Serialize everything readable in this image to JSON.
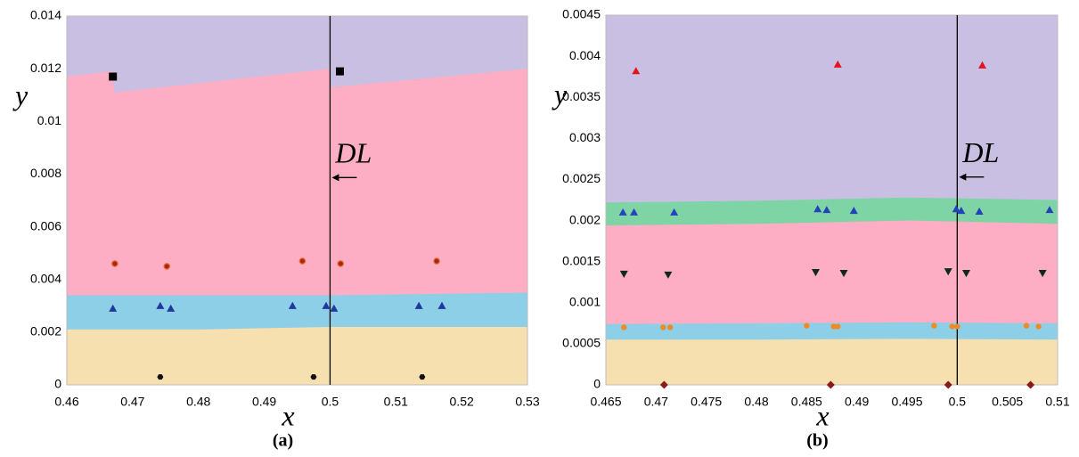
{
  "chart_data": [
    {
      "type": "scatter",
      "caption": "(a)",
      "xlabel": "x",
      "ylabel": "y",
      "xlim": [
        0.46,
        0.53
      ],
      "xticks": [
        0.46,
        0.47,
        0.48,
        0.49,
        0.5,
        0.51,
        0.52,
        0.53
      ],
      "ylim": [
        0,
        0.014
      ],
      "yticks": [
        0,
        0.002,
        0.004,
        0.006,
        0.008,
        0.01,
        0.012,
        0.014
      ],
      "plot_background": "#c8bfe3",
      "bands": [
        {
          "color": "#fdaec4",
          "x": [
            0.46,
            0.4668,
            0.4672,
            0.5,
            0.5002,
            0.53
          ],
          "y": [
            0.0117,
            0.0119,
            0.0111,
            0.012,
            0.0113,
            0.012
          ]
        },
        {
          "color": "#8ecfe8",
          "x": [
            0.46,
            0.48,
            0.5,
            0.53
          ],
          "y": [
            0.0034,
            0.0034,
            0.0034,
            0.0035
          ]
        },
        {
          "color": "#f6e0b0",
          "x": [
            0.46,
            0.48,
            0.5,
            0.53
          ],
          "y": [
            0.0021,
            0.0021,
            0.0022,
            0.0022
          ]
        }
      ],
      "vline": 0.5,
      "annotation": "DL",
      "series": [
        {
          "marker": "square",
          "color": "#000000",
          "x": [
            0.467,
            0.5015
          ],
          "y": [
            0.0117,
            0.0119
          ]
        },
        {
          "marker": "circle",
          "color": "#a8251a",
          "x": [
            0.4673,
            0.4752,
            0.4958,
            0.5016,
            0.5162
          ],
          "y": [
            0.0046,
            0.0045,
            0.0047,
            0.0046,
            0.0047
          ]
        },
        {
          "marker": "triangle",
          "color": "#1f3a9e",
          "x": [
            0.467,
            0.4742,
            0.4758,
            0.4943,
            0.4994,
            0.5006,
            0.5135,
            0.517
          ],
          "y": [
            0.0029,
            0.003,
            0.0029,
            0.003,
            0.003,
            0.0029,
            0.003,
            0.003
          ]
        },
        {
          "marker": "hexagon",
          "color": "#111111",
          "x": [
            0.4742,
            0.4975,
            0.514
          ],
          "y": [
            0.0003,
            0.0003,
            0.0003
          ]
        }
      ]
    },
    {
      "type": "scatter",
      "caption": "(b)",
      "xlabel": "x",
      "ylabel": "y",
      "xlim": [
        0.465,
        0.51
      ],
      "xticks": [
        0.465,
        0.47,
        0.475,
        0.48,
        0.485,
        0.49,
        0.495,
        0.5,
        0.505,
        0.51
      ],
      "ylim": [
        0,
        0.0045
      ],
      "yticks": [
        0,
        0.0005,
        0.001,
        0.0015,
        0.002,
        0.0025,
        0.003,
        0.0035,
        0.004,
        0.0045
      ],
      "plot_background": "#c8bfe3",
      "bands": [
        {
          "color": "#7fd4a6",
          "x": [
            0.465,
            0.48,
            0.495,
            0.51
          ],
          "y": [
            0.00222,
            0.00224,
            0.00228,
            0.00225
          ]
        },
        {
          "color": "#fdaec4",
          "x": [
            0.465,
            0.48,
            0.495,
            0.51
          ],
          "y": [
            0.00194,
            0.00196,
            0.002,
            0.00196
          ]
        },
        {
          "color": "#8ecfe8",
          "x": [
            0.465,
            0.48,
            0.495,
            0.51
          ],
          "y": [
            0.00074,
            0.00075,
            0.00076,
            0.00075
          ]
        },
        {
          "color": "#f6e0b0",
          "x": [
            0.465,
            0.48,
            0.495,
            0.51
          ],
          "y": [
            0.00055,
            0.00055,
            0.00056,
            0.00055
          ]
        }
      ],
      "vline": 0.5,
      "annotation": "DL",
      "series": [
        {
          "marker": "triangle",
          "color": "#e3141e",
          "x": [
            0.468,
            0.4881,
            0.5025
          ],
          "y": [
            0.00382,
            0.0039,
            0.00389
          ]
        },
        {
          "marker": "triangle",
          "color": "#2343b8",
          "x": [
            0.4667,
            0.4678,
            0.4718,
            0.4861,
            0.487,
            0.4897,
            0.4999,
            0.5004,
            0.5022,
            0.5092
          ],
          "y": [
            0.0021,
            0.0021,
            0.0021,
            0.00214,
            0.00213,
            0.00212,
            0.00214,
            0.00212,
            0.00211,
            0.00213
          ]
        },
        {
          "marker": "triangle-down",
          "color": "#0e2a1c",
          "x": [
            0.4668,
            0.4712,
            0.4859,
            0.4887,
            0.4991,
            0.5009,
            0.5085
          ],
          "y": [
            0.00135,
            0.00134,
            0.00137,
            0.00136,
            0.00138,
            0.00136,
            0.00136
          ]
        },
        {
          "marker": "circle",
          "color": "#f08a24",
          "x": [
            0.4668,
            0.4707,
            0.4714,
            0.485,
            0.4877,
            0.4881,
            0.4977,
            0.4995,
            0.5,
            0.5069,
            0.5081
          ],
          "y": [
            0.0007,
            0.0007,
            0.0007,
            0.00072,
            0.00071,
            0.00071,
            0.00072,
            0.00071,
            0.00071,
            0.00072,
            0.00071
          ]
        },
        {
          "marker": "diamond",
          "color": "#8b1a1a",
          "x": [
            0.4708,
            0.4874,
            0.4991,
            0.5073
          ],
          "y": [
            0,
            0,
            0,
            0
          ]
        }
      ]
    }
  ]
}
